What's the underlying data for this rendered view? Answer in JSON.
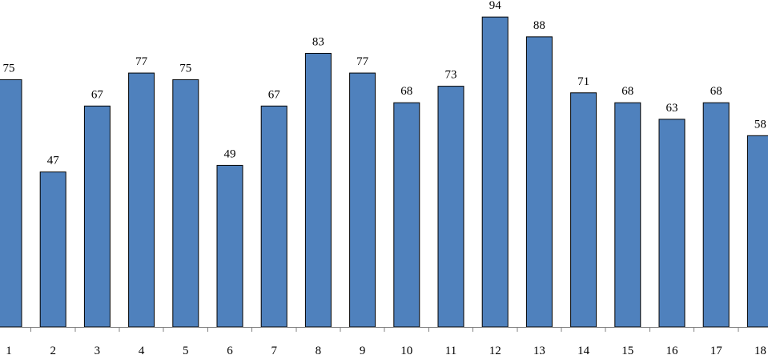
{
  "chart_data": {
    "type": "bar",
    "categories": [
      "1",
      "2",
      "3",
      "4",
      "5",
      "6",
      "7",
      "8",
      "9",
      "10",
      "11",
      "12",
      "13",
      "14",
      "15",
      "16",
      "17",
      "18"
    ],
    "values": [
      75,
      47,
      67,
      77,
      75,
      49,
      67,
      83,
      77,
      68,
      73,
      94,
      88,
      71,
      68,
      63,
      68,
      58
    ],
    "title": "",
    "xlabel": "",
    "ylabel": "",
    "ylim": [
      0,
      100
    ],
    "data_labels": true,
    "grid": false,
    "legend": "none",
    "colors": {
      "bar_fill": "#4f81bd",
      "bar_stroke": "#000000",
      "axis": "#808080"
    }
  }
}
